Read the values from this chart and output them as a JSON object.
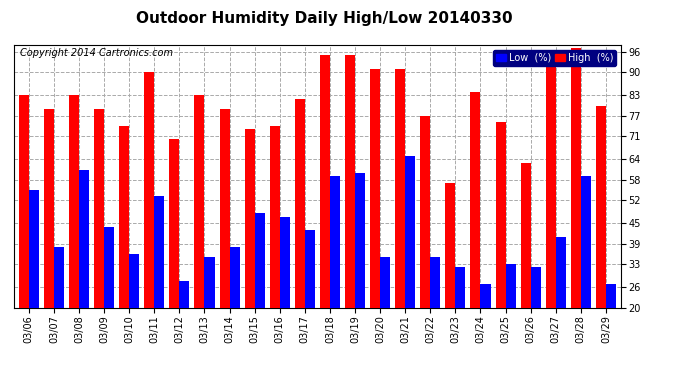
{
  "title": "Outdoor Humidity Daily High/Low 20140330",
  "copyright": "Copyright 2014 Cartronics.com",
  "dates": [
    "03/06",
    "03/07",
    "03/08",
    "03/09",
    "03/10",
    "03/11",
    "03/12",
    "03/13",
    "03/14",
    "03/15",
    "03/16",
    "03/17",
    "03/18",
    "03/19",
    "03/20",
    "03/21",
    "03/22",
    "03/23",
    "03/24",
    "03/25",
    "03/26",
    "03/27",
    "03/28",
    "03/29"
  ],
  "high": [
    83,
    79,
    83,
    79,
    74,
    90,
    70,
    83,
    79,
    73,
    74,
    82,
    95,
    95,
    91,
    91,
    77,
    57,
    84,
    75,
    63,
    96,
    97,
    80
  ],
  "low": [
    55,
    38,
    61,
    44,
    36,
    53,
    28,
    35,
    38,
    48,
    47,
    43,
    59,
    60,
    35,
    65,
    35,
    32,
    27,
    33,
    32,
    41,
    59,
    27
  ],
  "high_color": "#FF0000",
  "low_color": "#0000FF",
  "bg_color": "#FFFFFF",
  "plot_bg_color": "#FFFFFF",
  "grid_color": "#AAAAAA",
  "ylim_min": 20,
  "ylim_max": 98,
  "yticks": [
    20,
    26,
    33,
    39,
    45,
    52,
    58,
    64,
    71,
    77,
    83,
    90,
    96
  ],
  "legend_low_label": "Low  (%)",
  "legend_high_label": "High  (%)",
  "title_fontsize": 11,
  "copyright_fontsize": 7,
  "tick_fontsize": 7,
  "bar_width": 0.4
}
